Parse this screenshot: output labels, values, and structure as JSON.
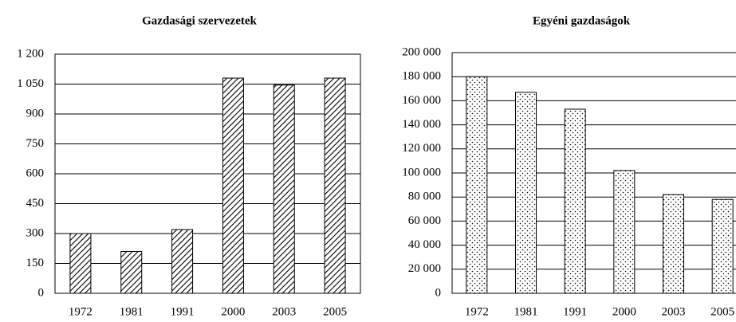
{
  "chart_data": [
    {
      "type": "bar",
      "title": "Gazdasági szervezetek",
      "categories": [
        "1972",
        "1981",
        "1991",
        "2000",
        "2003",
        "2005"
      ],
      "values": [
        300,
        210,
        320,
        1080,
        1045,
        1080
      ],
      "color": "#000000",
      "pattern": "hatch",
      "ylim": [
        0,
        1200
      ],
      "yticks": [
        0,
        150,
        300,
        450,
        600,
        750,
        900,
        {
          "value": 1050,
          "label": "1 050"
        },
        {
          "value": 1200,
          "label": "1 200"
        }
      ],
      "grid": true
    },
    {
      "type": "bar",
      "title": "Egyéni gazdaságok",
      "categories": [
        "1972",
        "1981",
        "1991",
        "2000",
        "2003",
        "2005"
      ],
      "values": [
        180000,
        167000,
        153000,
        102000,
        82000,
        78000
      ],
      "color": "#000000",
      "pattern": "dots",
      "ylim": [
        0,
        200000
      ],
      "yticks": [
        0,
        {
          "value": 20000,
          "label": "20 000"
        },
        {
          "value": 40000,
          "label": "40 000"
        },
        {
          "value": 60000,
          "label": "60 000"
        },
        {
          "value": 80000,
          "label": "80 000"
        },
        {
          "value": 100000,
          "label": "100 000"
        },
        {
          "value": 120000,
          "label": "120 000"
        },
        {
          "value": 140000,
          "label": "140 000"
        },
        {
          "value": 160000,
          "label": "160 000"
        },
        {
          "value": 180000,
          "label": "180 000"
        },
        {
          "value": 200000,
          "label": "200 000"
        }
      ],
      "grid": true
    }
  ]
}
